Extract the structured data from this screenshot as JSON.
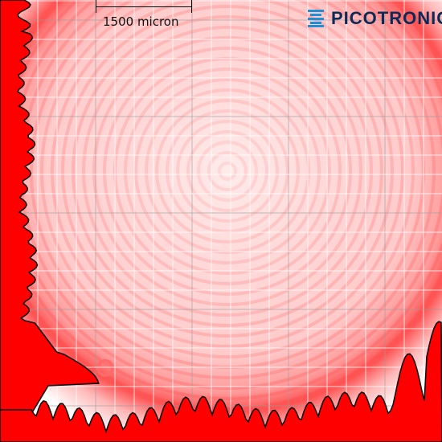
{
  "brand": {
    "name": "PICOTRONIC",
    "mark": "®"
  },
  "scale_bar": {
    "label": "1500 micron"
  },
  "colors": {
    "profile_fill": "#ff0000",
    "ring_color": "#ff3a3a",
    "grid_line": "#ffffff",
    "grid_line_major": "#9a9a9a",
    "logo_blue": "#1e90d6",
    "logo_text": "#0b2a57"
  },
  "icons": {
    "logo": "picotronic-logo-icon"
  }
}
